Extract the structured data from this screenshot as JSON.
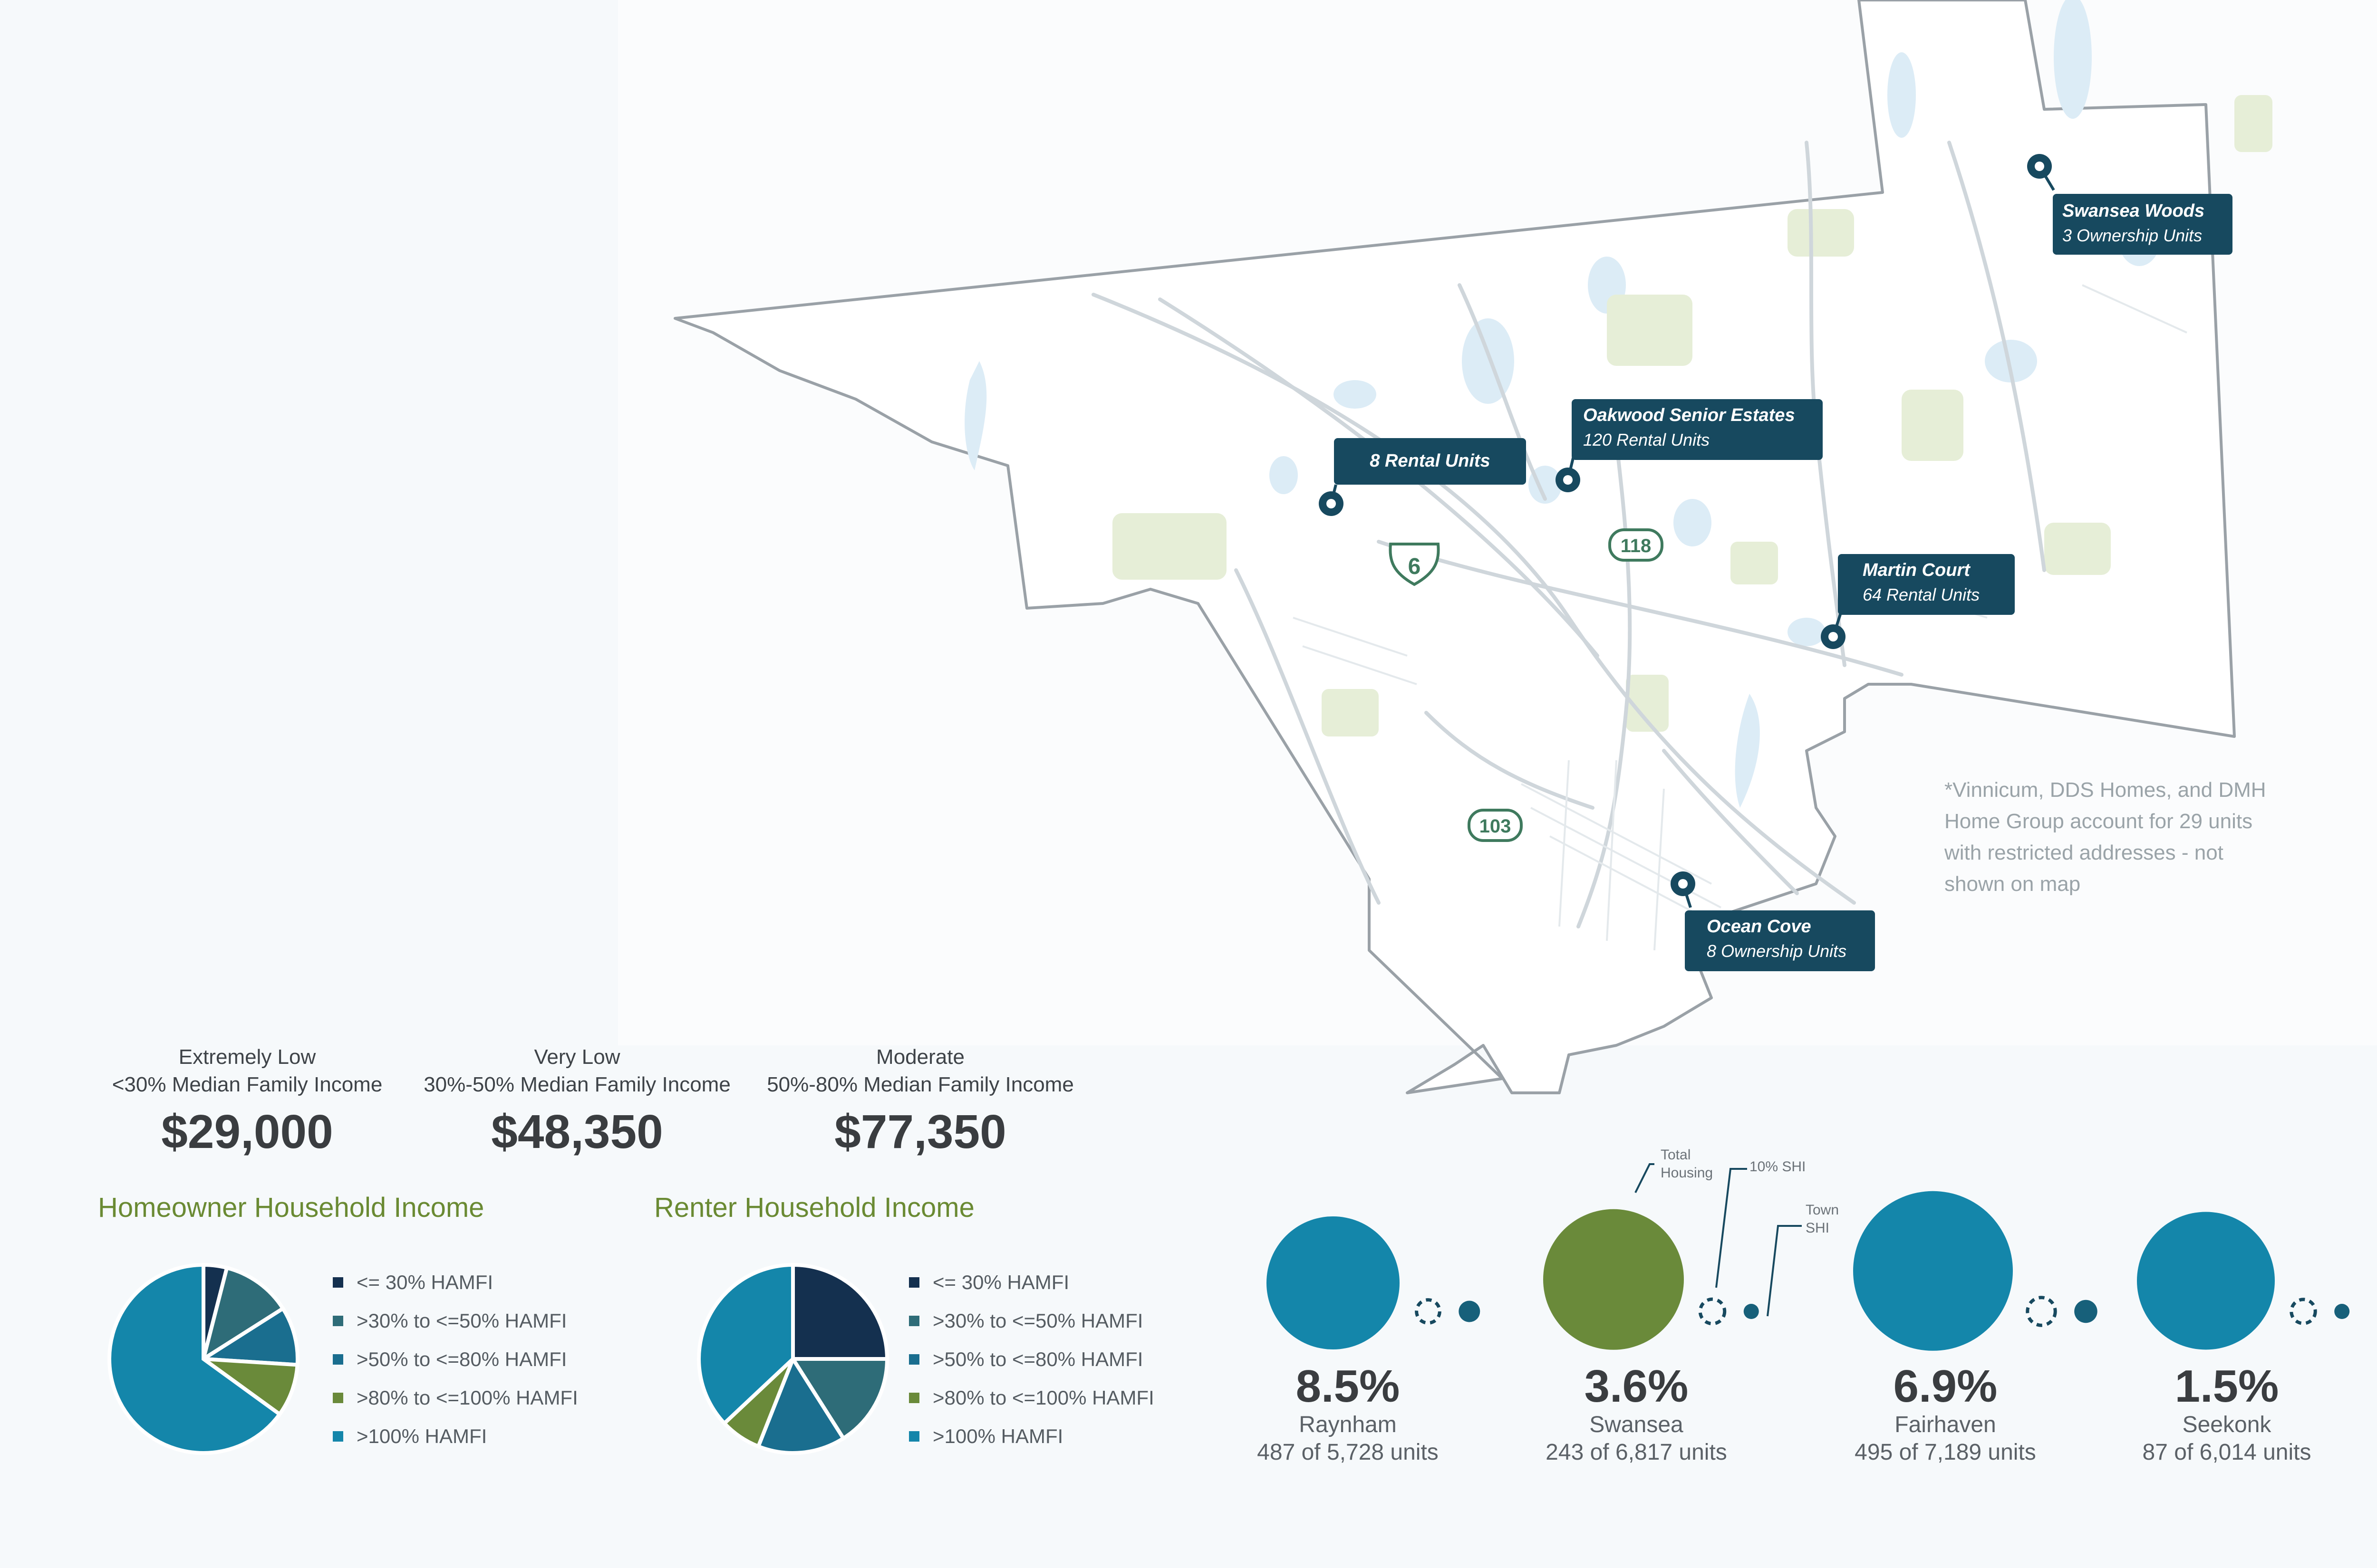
{
  "colors": {
    "navy": "#14304f",
    "slate_teal": "#2e6c78",
    "teal": "#1a6e8f",
    "olive": "#6a8a3a",
    "bright_teal": "#1486aa",
    "callout_bg": "#17495f",
    "section_title": "#6a8a33"
  },
  "map": {
    "route_shields": [
      {
        "label": "6",
        "type": "us-highway"
      },
      {
        "label": "118",
        "type": "state-route"
      },
      {
        "label": "103",
        "type": "state-route"
      }
    ],
    "callouts": [
      {
        "title": "Swansea Woods",
        "subtitle": "3 Ownership Units"
      },
      {
        "title": "Oakwood Senior Estates",
        "subtitle": "120 Rental Units"
      },
      {
        "title": "8 Rental Units",
        "subtitle": ""
      },
      {
        "title": "Martin Court",
        "subtitle": "64 Rental Units"
      },
      {
        "title": "Ocean Cove",
        "subtitle": "8 Ownership Units"
      }
    ],
    "note": "*Vinnicum, DDS Homes, and DMH Home Group account for 29 units with restricted addresses - not shown on map"
  },
  "income_limits": [
    {
      "label": "Extremely Low",
      "range": "<30% Median Family Income",
      "amount": "$29,000"
    },
    {
      "label": "Very Low",
      "range": "30%-50% Median Family Income",
      "amount": "$48,350"
    },
    {
      "label": "Moderate",
      "range": "50%-80% Median Family Income",
      "amount": "$77,350"
    }
  ],
  "chart_data": [
    {
      "type": "pie",
      "title": "Homeowner Household Income",
      "categories": [
        "<= 30% HAMFI",
        ">30% to <=50% HAMFI",
        ">50% to <=80% HAMFI",
        ">80% to <=100% HAMFI",
        ">100% HAMFI"
      ],
      "values": [
        4,
        12,
        10,
        9,
        65
      ],
      "colors": [
        "#14304f",
        "#2e6c78",
        "#1a6e8f",
        "#6a8a3a",
        "#1486aa"
      ],
      "legend_position": "right"
    },
    {
      "type": "pie",
      "title": "Renter Household Income",
      "categories": [
        "<= 30% HAMFI",
        ">30% to <=50% HAMFI",
        ">50% to <=80% HAMFI",
        ">80% to <=100% HAMFI",
        ">100% HAMFI"
      ],
      "values": [
        25,
        16,
        15,
        7,
        37
      ],
      "colors": [
        "#14304f",
        "#2e6c78",
        "#1a6e8f",
        "#6a8a3a",
        "#1486aa"
      ],
      "legend_position": "right"
    }
  ],
  "shi": {
    "annotations": {
      "total": "Total Housing",
      "ten_pct": "10% SHI",
      "town": "Town SHI"
    },
    "towns": [
      {
        "pct": "8.5%",
        "town": "Raynham",
        "units": "487 of 5,728 units",
        "total_housing": 5728,
        "shi_units": 487,
        "color": "#1486aa"
      },
      {
        "pct": "3.6%",
        "town": "Swansea",
        "units": "243 of 6,817 units",
        "total_housing": 6817,
        "shi_units": 243,
        "color": "#6a8a3a"
      },
      {
        "pct": "6.9%",
        "town": "Fairhaven",
        "units": "495 of 7,189 units",
        "total_housing": 7189,
        "shi_units": 495,
        "color": "#1486aa"
      },
      {
        "pct": "1.5%",
        "town": "Seekonk",
        "units": "87 of 6,014 units",
        "total_housing": 6014,
        "shi_units": 87,
        "color": "#1486aa"
      }
    ]
  }
}
